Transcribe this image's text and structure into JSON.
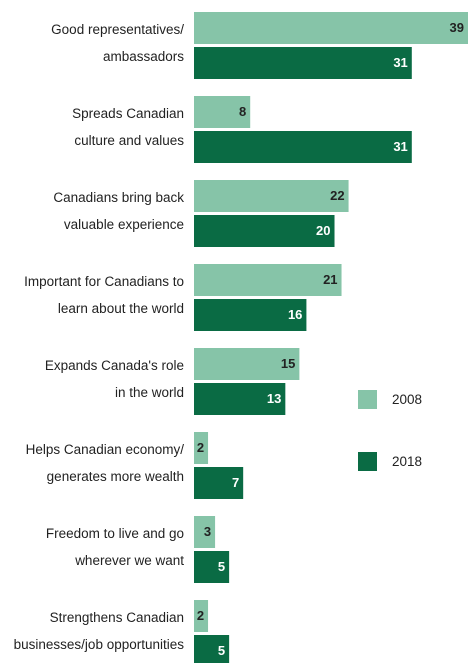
{
  "chart_data": {
    "type": "bar",
    "orientation": "horizontal",
    "categories": [
      [
        "Good representatives/",
        "ambassadors"
      ],
      [
        "Spreads Canadian",
        "culture and values"
      ],
      [
        "Canadians bring back",
        "valuable experience"
      ],
      [
        "Important for Canadians to",
        "learn about the world"
      ],
      [
        "Expands Canada's role",
        "in the world"
      ],
      [
        "Helps Canadian economy/",
        "generates more wealth"
      ],
      [
        "Freedom to live and go",
        "wherever we want"
      ],
      [
        "Strengthens Canadian",
        "businesses/job opportunities"
      ]
    ],
    "series": [
      {
        "name": "2008",
        "color": "#86c4a8",
        "label_color": "#222222",
        "values": [
          39,
          8,
          22,
          21,
          15,
          2,
          3,
          2
        ]
      },
      {
        "name": "2018",
        "color": "#0a6b44",
        "label_color": "#ffffff",
        "values": [
          31,
          31,
          20,
          16,
          13,
          7,
          5,
          5
        ]
      }
    ],
    "xlim": [
      0,
      39
    ],
    "grid": false,
    "legend": "right"
  }
}
